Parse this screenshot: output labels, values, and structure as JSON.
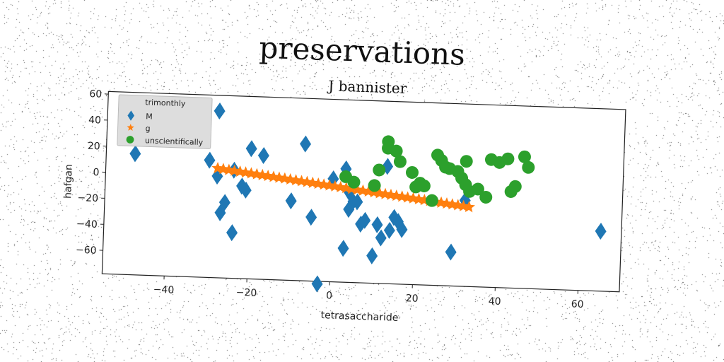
{
  "figure": {
    "suptitle": "preservations"
  },
  "chart_data": {
    "type": "scatter",
    "title": "J bannister",
    "xlabel": "tetrasaccharide",
    "ylabel": "hafgan",
    "xlim": [
      -55,
      70
    ],
    "ylim": [
      -78,
      62
    ],
    "xticks": [
      -40,
      -20,
      0,
      20,
      40,
      60
    ],
    "yticks": [
      -60,
      -40,
      -20,
      0,
      20,
      40,
      60
    ],
    "grid": false,
    "legend": {
      "title": "trimonthly",
      "placement": "top-left",
      "entries": [
        "M",
        "g",
        "unscientifically"
      ]
    },
    "series": [
      {
        "name": "M",
        "marker": "diamond",
        "color": "#1f77b4",
        "points": [
          [
            -48,
            15
          ],
          [
            -28,
            50
          ],
          [
            -30,
            12
          ],
          [
            -28,
            0
          ],
          [
            -26,
            -20
          ],
          [
            -27,
            -28
          ],
          [
            -24,
            -43
          ],
          [
            -24,
            5
          ],
          [
            -21,
            -10
          ],
          [
            -22,
            -7
          ],
          [
            -20,
            22
          ],
          [
            -17,
            17
          ],
          [
            -10,
            -17
          ],
          [
            -7,
            27
          ],
          [
            -5,
            -29
          ],
          [
            -3,
            -80
          ],
          [
            0,
            1
          ],
          [
            3,
            9
          ],
          [
            3,
            -52
          ],
          [
            4,
            -22
          ],
          [
            4,
            -9
          ],
          [
            5,
            -16
          ],
          [
            6,
            -16
          ],
          [
            7,
            -33
          ],
          [
            8,
            -30
          ],
          [
            10,
            -57
          ],
          [
            11,
            -33
          ],
          [
            12,
            -43
          ],
          [
            13,
            12
          ],
          [
            14,
            -37
          ],
          [
            15,
            -27
          ],
          [
            16,
            -30
          ],
          [
            17,
            -36
          ],
          [
            29,
            -52
          ],
          [
            32,
            -12
          ],
          [
            65,
            -32
          ]
        ]
      },
      {
        "name": "g",
        "marker": "star",
        "color": "#ff7f0e",
        "line_from": [
          -28,
          6
        ],
        "line_to": [
          33,
          -17
        ],
        "count": 46
      },
      {
        "name": "unscientifically",
        "marker": "circle",
        "color": "#2ca02c",
        "points": [
          [
            13,
            31
          ],
          [
            13,
            26
          ],
          [
            15,
            24
          ],
          [
            16,
            16
          ],
          [
            19,
            8
          ],
          [
            21,
            0
          ],
          [
            20,
            -3
          ],
          [
            11,
            9
          ],
          [
            3,
            3
          ],
          [
            5,
            -1
          ],
          [
            10,
            -3
          ],
          [
            25,
            22
          ],
          [
            26,
            18
          ],
          [
            27,
            13
          ],
          [
            28,
            12
          ],
          [
            30,
            10
          ],
          [
            31,
            5
          ],
          [
            32,
            18
          ],
          [
            32,
            0
          ],
          [
            33,
            -5
          ],
          [
            37,
            -9
          ],
          [
            40,
            18
          ],
          [
            42,
            21
          ],
          [
            43,
            -4
          ],
          [
            46,
            23
          ],
          [
            47,
            15
          ],
          [
            44,
            0
          ],
          [
            38,
            20
          ],
          [
            24,
            -13
          ],
          [
            35,
            -3
          ],
          [
            22,
            -2
          ]
        ]
      }
    ]
  }
}
